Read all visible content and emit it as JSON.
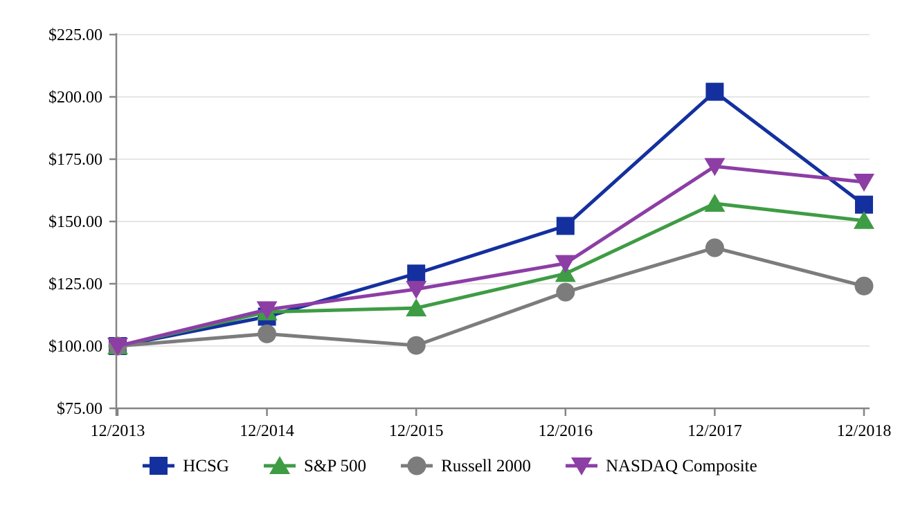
{
  "chart_data": {
    "type": "line",
    "title": "",
    "xlabel": "",
    "ylabel": "",
    "categories": [
      "12/2013",
      "12/2014",
      "12/2015",
      "12/2016",
      "12/2017",
      "12/2018"
    ],
    "series": [
      {
        "name": "HCSG",
        "marker": "square",
        "color": "#14309E",
        "values": [
          100.0,
          111.79,
          129.09,
          148.22,
          202.06,
          156.75
        ]
      },
      {
        "name": "S&P 500",
        "marker": "triangle-up",
        "color": "#3E9C44",
        "values": [
          100.0,
          113.69,
          115.26,
          129.05,
          157.22,
          150.33
        ]
      },
      {
        "name": "Russell 2000",
        "marker": "circle",
        "color": "#7C7C7C",
        "values": [
          100.0,
          104.89,
          100.26,
          121.63,
          139.44,
          124.09
        ]
      },
      {
        "name": "NASDAQ Composite",
        "marker": "triangle-down",
        "color": "#8C3EA5",
        "values": [
          100.0,
          114.62,
          122.81,
          133.19,
          172.11,
          165.84
        ]
      }
    ],
    "ylim": [
      75,
      225
    ],
    "yticks": [
      75,
      100,
      125,
      150,
      175,
      200,
      225
    ],
    "ytick_labels": [
      "$75.00",
      "$100.00",
      "$125.00",
      "$150.00",
      "$175.00",
      "$200.00",
      "$225.00"
    ],
    "grid": "horizontal",
    "legend_position": "bottom",
    "colors": {
      "axis": "#848484",
      "grid": "#E6E6E6",
      "text": "#000000",
      "background": "#FFFFFF"
    }
  }
}
